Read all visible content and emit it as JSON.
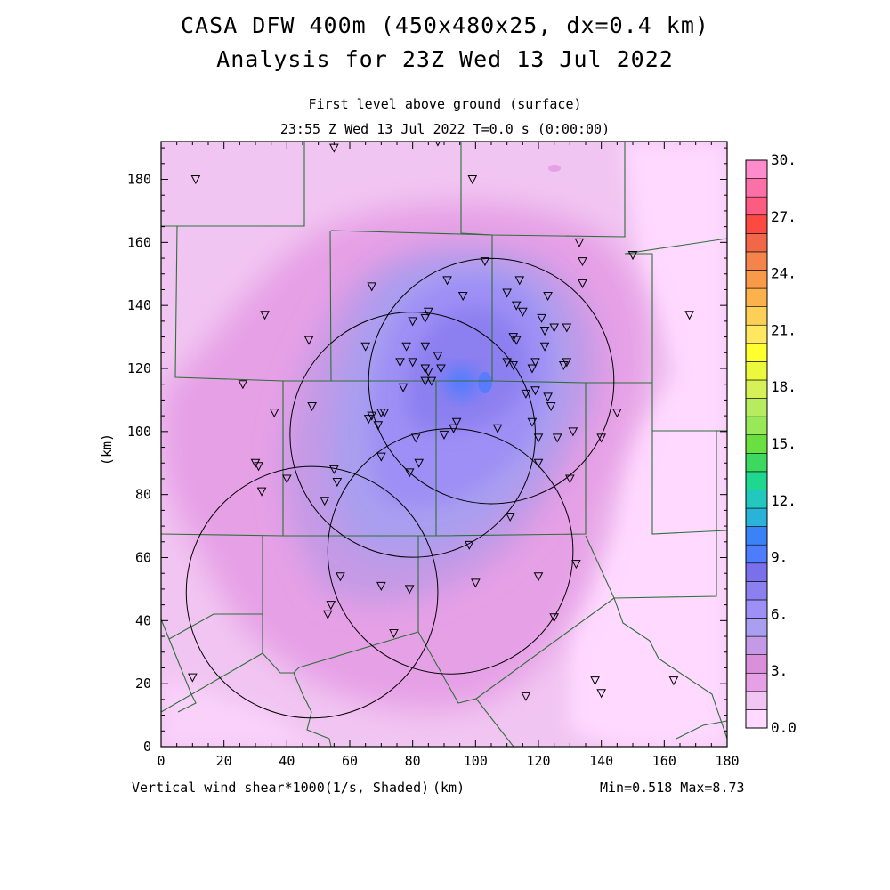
{
  "header": {
    "title_line1": "CASA DFW 400m (450x480x25, dx=0.4 km)",
    "title_line2": "Analysis for 23Z Wed 13 Jul 2022",
    "level": "First level above ground (surface)",
    "valid_time": "23:55 Z Wed 13 Jul 2022   T=0.0 s (0:00:00)"
  },
  "axes": {
    "x_ticks": [
      "0",
      "20",
      "40",
      "60",
      "80",
      "100",
      "120",
      "140",
      "160",
      "180"
    ],
    "y_ticks": [
      "0",
      "20",
      "40",
      "60",
      "80",
      "100",
      "120",
      "140",
      "160",
      "180"
    ],
    "y_label": "(km)",
    "x_unit": "(km)",
    "x_range": [
      0,
      180
    ],
    "y_range": [
      0,
      192
    ]
  },
  "footer": {
    "variable": "Vertical wind shear*1000(1/s, Shaded)",
    "minmax": "Min=0.518 Max=8.73"
  },
  "colorbar": {
    "labels": [
      "0.0",
      "3.",
      "6.",
      "9.",
      "12.",
      "15.",
      "18.",
      "21.",
      "24.",
      "27.",
      "30."
    ],
    "colors": [
      "#ffd9ff",
      "#f1c5f1",
      "#e6a0e6",
      "#d98fd9",
      "#c49ae6",
      "#a99ef0",
      "#9d8ff5",
      "#8c7ff0",
      "#7a70ec",
      "#4e7cff",
      "#3a82f5",
      "#2ab2d8",
      "#22c8c0",
      "#1fd890",
      "#3cd860",
      "#6ae040",
      "#98e858",
      "#b8ec60",
      "#d6f058",
      "#ecf83c",
      "#ffff30",
      "#ffe860",
      "#fcd056",
      "#fcb24a",
      "#f89a48",
      "#f4844c",
      "#f06848",
      "#fc4a42",
      "#fc5c82",
      "#fc70a8",
      "#fc8ccc"
    ]
  },
  "radar_circles": [
    {
      "center_km": [
        105,
        116
      ],
      "radius_km": 39
    },
    {
      "center_km": [
        80,
        99
      ],
      "radius_km": 39
    },
    {
      "center_km": [
        92,
        62
      ],
      "radius_km": 39
    },
    {
      "center_km": [
        48,
        49
      ],
      "radius_km": 40
    }
  ],
  "stations_km": [
    [
      11,
      180
    ],
    [
      55,
      190
    ],
    [
      88,
      192
    ],
    [
      99,
      180
    ],
    [
      33,
      137
    ],
    [
      47,
      129
    ],
    [
      67,
      146
    ],
    [
      26,
      115
    ],
    [
      36,
      106
    ],
    [
      30,
      90
    ],
    [
      31,
      89
    ],
    [
      32,
      81
    ],
    [
      40,
      85
    ],
    [
      48,
      108
    ],
    [
      52,
      78
    ],
    [
      53,
      42
    ],
    [
      54,
      45
    ],
    [
      55,
      88
    ],
    [
      56,
      84
    ],
    [
      57,
      54
    ],
    [
      65,
      127
    ],
    [
      66,
      104
    ],
    [
      67,
      105
    ],
    [
      69,
      102
    ],
    [
      70,
      106
    ],
    [
      71,
      106
    ],
    [
      70,
      92
    ],
    [
      70,
      51
    ],
    [
      74,
      36
    ],
    [
      76,
      122
    ],
    [
      77,
      114
    ],
    [
      78,
      127
    ],
    [
      79,
      87
    ],
    [
      79,
      50
    ],
    [
      80,
      135
    ],
    [
      80,
      122
    ],
    [
      81,
      98
    ],
    [
      82,
      90
    ],
    [
      84,
      127
    ],
    [
      84,
      136
    ],
    [
      85,
      138
    ],
    [
      84,
      120
    ],
    [
      85,
      119
    ],
    [
      84,
      116
    ],
    [
      86,
      116
    ],
    [
      88,
      124
    ],
    [
      89,
      120
    ],
    [
      90,
      99
    ],
    [
      91,
      148
    ],
    [
      93,
      101
    ],
    [
      94,
      103
    ],
    [
      96,
      143
    ],
    [
      98,
      64
    ],
    [
      100,
      52
    ],
    [
      103,
      154
    ],
    [
      107,
      101
    ],
    [
      110,
      144
    ],
    [
      110,
      122
    ],
    [
      111,
      73
    ],
    [
      112,
      130
    ],
    [
      112,
      121
    ],
    [
      113,
      129
    ],
    [
      113,
      140
    ],
    [
      114,
      148
    ],
    [
      115,
      138
    ],
    [
      116,
      112
    ],
    [
      118,
      103
    ],
    [
      118,
      120
    ],
    [
      119,
      113
    ],
    [
      119,
      122
    ],
    [
      120,
      98
    ],
    [
      120,
      90
    ],
    [
      120,
      54
    ],
    [
      121,
      136
    ],
    [
      122,
      132
    ],
    [
      122,
      127
    ],
    [
      123,
      143
    ],
    [
      123,
      111
    ],
    [
      124,
      108
    ],
    [
      125,
      133
    ],
    [
      125,
      41
    ],
    [
      126,
      98
    ],
    [
      128,
      121
    ],
    [
      129,
      133
    ],
    [
      129,
      122
    ],
    [
      130,
      85
    ],
    [
      131,
      100
    ],
    [
      132,
      58
    ],
    [
      133,
      160
    ],
    [
      134,
      154
    ],
    [
      134,
      147
    ],
    [
      138,
      21
    ],
    [
      140,
      17
    ],
    [
      140,
      98
    ],
    [
      145,
      106
    ],
    [
      150,
      156
    ],
    [
      168,
      137
    ],
    [
      163,
      21
    ],
    [
      116,
      16
    ],
    [
      10,
      22
    ]
  ],
  "legend_note": ""
}
